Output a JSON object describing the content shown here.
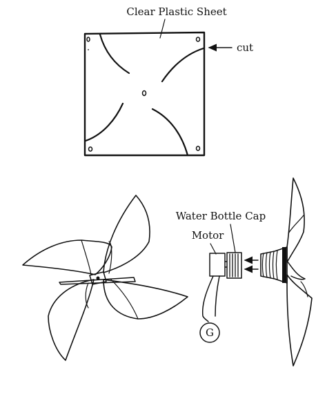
{
  "labels": {
    "sheet": "Clear Plastic Sheet",
    "cut": "cut",
    "cap": "Water Bottle Cap",
    "motor": "Motor",
    "generator": "G"
  },
  "colors": {
    "ink": "#111111",
    "background": "#ffffff"
  }
}
